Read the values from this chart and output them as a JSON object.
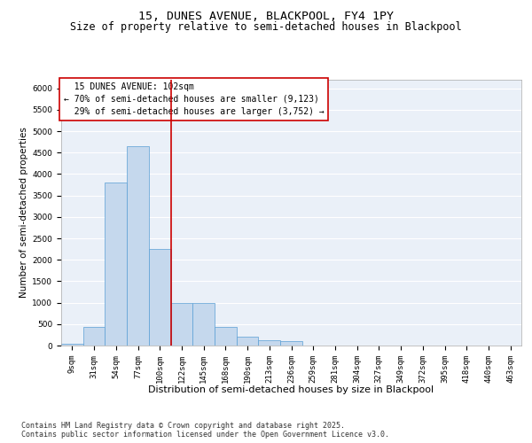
{
  "title1": "15, DUNES AVENUE, BLACKPOOL, FY4 1PY",
  "title2": "Size of property relative to semi-detached houses in Blackpool",
  "xlabel": "Distribution of semi-detached houses by size in Blackpool",
  "ylabel": "Number of semi-detached properties",
  "footnote": "Contains HM Land Registry data © Crown copyright and database right 2025.\nContains public sector information licensed under the Open Government Licence v3.0.",
  "bin_labels": [
    "9sqm",
    "31sqm",
    "54sqm",
    "77sqm",
    "100sqm",
    "122sqm",
    "145sqm",
    "168sqm",
    "190sqm",
    "213sqm",
    "236sqm",
    "259sqm",
    "281sqm",
    "304sqm",
    "327sqm",
    "349sqm",
    "372sqm",
    "395sqm",
    "418sqm",
    "440sqm",
    "463sqm"
  ],
  "bar_heights": [
    50,
    430,
    3800,
    4650,
    2250,
    1000,
    1000,
    430,
    200,
    120,
    100,
    0,
    0,
    0,
    0,
    0,
    0,
    0,
    0,
    0,
    0
  ],
  "bar_color": "#c5d8ed",
  "bar_edge_color": "#5a9fd4",
  "property_label": "15 DUNES AVENUE: 102sqm",
  "pct_smaller": "70%",
  "n_smaller": "9,123",
  "pct_larger": "29%",
  "n_larger": "3,752",
  "annotation_box_color": "#ffffff",
  "annotation_box_edge_color": "#cc0000",
  "red_line_color": "#cc0000",
  "ylim": [
    0,
    6200
  ],
  "yticks": [
    0,
    500,
    1000,
    1500,
    2000,
    2500,
    3000,
    3500,
    4000,
    4500,
    5000,
    5500,
    6000
  ],
  "bg_color": "#eaf0f8",
  "fig_bg_color": "#ffffff",
  "grid_color": "#ffffff",
  "title1_fontsize": 9.5,
  "title2_fontsize": 8.5,
  "xlabel_fontsize": 8,
  "ylabel_fontsize": 7.5,
  "tick_fontsize": 6.5,
  "annot_fontsize": 7,
  "footnote_fontsize": 6
}
